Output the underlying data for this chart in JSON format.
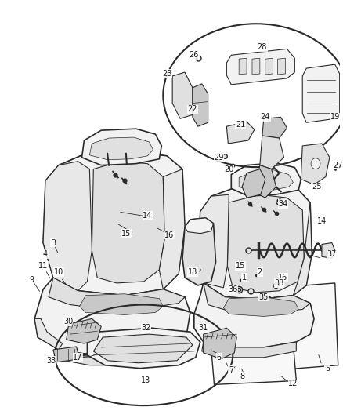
{
  "bg_color": "#ffffff",
  "line_color": "#2a2a2a",
  "fill_light": "#f2f2f2",
  "fill_mid": "#e0e0e0",
  "fill_dark": "#c8c8c8",
  "fill_seat": "#e8e8e8",
  "figsize": [
    4.38,
    5.33
  ],
  "dpi": 100,
  "font_size": 7.0
}
